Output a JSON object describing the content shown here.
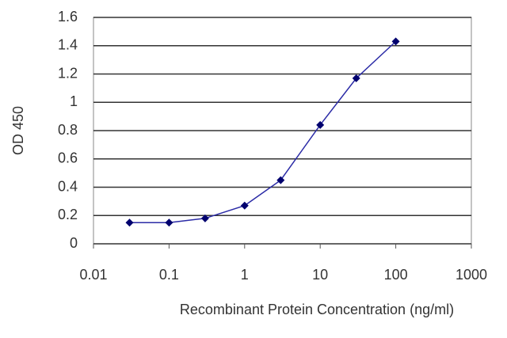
{
  "chart_data": {
    "type": "line",
    "x_label": "Recombinant Protein Concentration (ng/ml)",
    "y_label": "OD 450",
    "x": [
      0.03,
      0.1,
      0.3,
      1,
      3,
      10,
      30,
      100
    ],
    "values": [
      0.15,
      0.15,
      0.18,
      0.27,
      0.45,
      0.84,
      1.17,
      1.43
    ],
    "color": "#2a2aa6",
    "marker_color": "#00006e",
    "xscale": "log",
    "xlim": [
      0.01,
      1000
    ],
    "xticks": [
      0.01,
      0.1,
      1,
      10,
      100,
      1000
    ],
    "ylim": [
      0,
      1.6
    ],
    "yticks": [
      0,
      0.2,
      0.4,
      0.6,
      0.8,
      1,
      1.2,
      1.4,
      1.6
    ],
    "grid": true
  }
}
